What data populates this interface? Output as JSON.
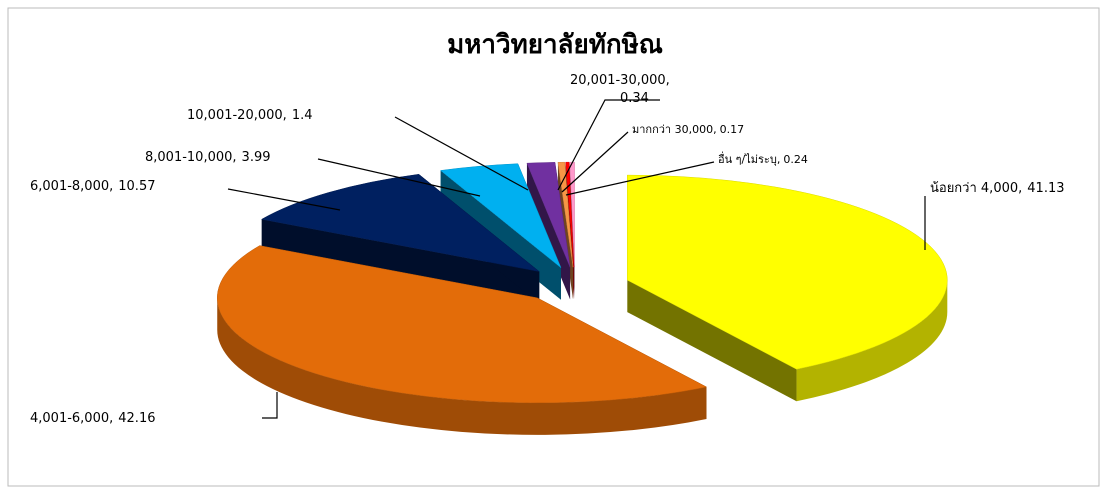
{
  "chart_data": {
    "type": "pie",
    "title": "มหาวิทยาลัยทักษิณ",
    "separator": ",",
    "categories": [
      "น้อยกว่า 4,000",
      "4,001-6,000",
      "6,001-8,000",
      "8,001-10,000",
      "10,001-20,000",
      "20,001-30,000",
      "มากกว่า 30,000",
      "อื่น ๆ/ไม่ระบุ"
    ],
    "values": [
      41.13,
      42.16,
      10.57,
      3.99,
      1.4,
      0.34,
      0.17,
      0.24
    ],
    "colors": [
      "#ffff00",
      "#e36c09",
      "#002060",
      "#00b0f0",
      "#7030a0",
      "#f79646",
      "#ff0000",
      "#ff99cc"
    ],
    "exploded": true,
    "three_d": true
  }
}
